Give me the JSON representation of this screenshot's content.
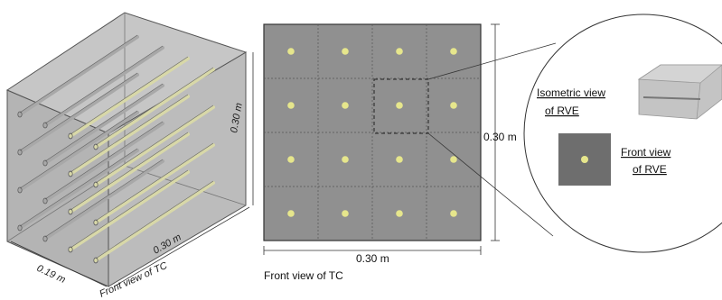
{
  "isometric": {
    "dim_height": "0.30 m",
    "dim_depth": "0.30 m",
    "dim_width": "0.19 m",
    "caption": "Front view of TC"
  },
  "front": {
    "grid_rows": 4,
    "grid_cols": 4,
    "dim_height": "0.30 m",
    "dim_width": "0.30 m",
    "caption": "Front view of TC",
    "highlight_cell": [
      1,
      2
    ]
  },
  "zoom": {
    "iso_label_line1": "Isometric view",
    "iso_label_line2": "of RVE",
    "front_label_line1": "Front view",
    "front_label_line2": "of RVE"
  },
  "colors": {
    "matrix": "#8c8c8c",
    "fiber": "#e6e68c",
    "box_face": "#b7b7b7"
  }
}
